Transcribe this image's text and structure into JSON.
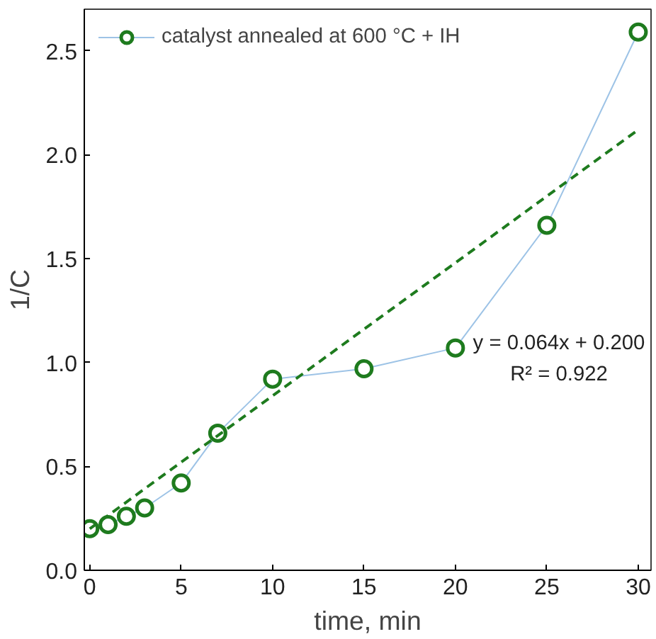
{
  "chart_data": {
    "type": "line",
    "xlabel": "time, min",
    "ylabel": "1/C",
    "xlim": [
      -0.3,
      30.7
    ],
    "ylim": [
      0,
      2.7
    ],
    "xticks": [
      0,
      5,
      10,
      15,
      20,
      25,
      30
    ],
    "yticks": [
      {
        "value": 0,
        "label": "0.0"
      },
      {
        "value": 0.5,
        "label": "0.5"
      },
      {
        "value": 1,
        "label": "1.0"
      },
      {
        "value": 1.5,
        "label": "1.5"
      },
      {
        "value": 2,
        "label": "2.0"
      },
      {
        "value": 2.5,
        "label": "2.5"
      }
    ],
    "grid": false,
    "legend": "top left",
    "series": [
      {
        "color": "#9dc3e6",
        "marker": "none",
        "x": [
          0,
          1,
          2,
          3,
          5,
          7,
          10,
          15,
          20,
          25,
          30
        ],
        "values": [
          0.2,
          0.22,
          0.26,
          0.3,
          0.42,
          0.66,
          0.92,
          0.97,
          1.07,
          1.66,
          2.59
        ]
      },
      {
        "type": "scatter",
        "name": "catalyst annealed at 600 °C + IH",
        "color": "#1e7b1e",
        "marker": "circle",
        "x": [
          0,
          1,
          2,
          3,
          5,
          7,
          10,
          15,
          20,
          25,
          30
        ],
        "values": [
          0.2,
          0.22,
          0.26,
          0.3,
          0.42,
          0.66,
          0.92,
          0.97,
          1.07,
          1.66,
          2.59
        ]
      },
      {
        "color": "#1e7b1e",
        "marker": "none",
        "line_style": "dashed",
        "x": [
          0,
          30
        ],
        "values": [
          0.2,
          2.12
        ]
      }
    ],
    "annotations": [
      "y = 0.064x + 0.200",
      "R² = 0.922"
    ]
  }
}
